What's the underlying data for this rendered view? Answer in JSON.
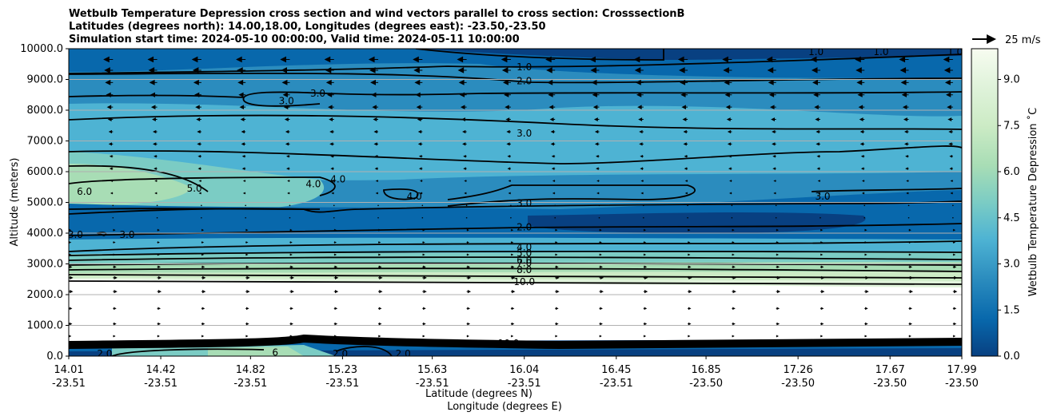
{
  "chart_data": {
    "type": "contour",
    "title_lines": [
      "Wetbulb Temperature Depression cross section and wind vectors parallel to cross section: CrosssectionB",
      "Latitudes (degrees north): 14.00,18.00, Longitudes (degrees east): -23.50,-23.50",
      "Simulation start time: 2024-05-10 00:00:00, Valid time: 2024-05-11 10:00:00"
    ],
    "ylabel": "Altitude (meters)",
    "xlabel_lat": "Latitude (degrees N)",
    "xlabel_lon": "Longitude (degrees E)",
    "ylim": [
      0,
      10000
    ],
    "yticks": [
      0,
      1000,
      2000,
      3000,
      4000,
      5000,
      6000,
      7000,
      8000,
      9000,
      10000
    ],
    "ytick_labels": [
      "0.0",
      "1000.0",
      "2000.0",
      "3000.0",
      "4000.0",
      "5000.0",
      "6000.0",
      "7000.0",
      "8000.0",
      "9000.0",
      "10000.0"
    ],
    "xlim": [
      14.01,
      17.99
    ],
    "xticks": [
      14.01,
      14.42,
      14.82,
      15.23,
      15.63,
      16.04,
      16.45,
      16.85,
      17.26,
      17.67,
      17.99
    ],
    "xtick_lat_labels": [
      "14.01",
      "14.42",
      "14.82",
      "15.23",
      "15.63",
      "16.04",
      "16.45",
      "16.85",
      "17.26",
      "17.67",
      "17.99"
    ],
    "xtick_lon_labels": [
      "-23.51",
      "-23.51",
      "-23.51",
      "-23.51",
      "-23.51",
      "-23.51",
      "-23.51",
      "-23.50",
      "-23.50",
      "-23.50",
      "-23.50"
    ],
    "grid_horizontal": true,
    "colorbar": {
      "label": "Wetbulb Temperature Depression ˚C",
      "min": 0.0,
      "max": 10.0,
      "ticks": [
        0.0,
        1.5,
        3.0,
        4.5,
        6.0,
        7.5,
        9.0
      ],
      "tick_labels": [
        "0.0",
        "1.5",
        "3.0",
        "4.5",
        "6.0",
        "7.5",
        "9.0"
      ],
      "colormap": [
        "#084081",
        "#0868ac",
        "#2b8cbe",
        "#4eb3d3",
        "#7bccc4",
        "#a8ddb5",
        "#ccebc5",
        "#e0f3db",
        "#f7fcf0"
      ]
    },
    "quiver_key": {
      "label": "25 m/s",
      "speed": 25
    },
    "contour_levels": [
      1.0,
      2.0,
      3.0,
      4.0,
      5.0,
      6.0,
      7.0,
      8.0,
      9.0,
      10.0
    ],
    "contour_labels": [
      {
        "text": "1.0",
        "lat": 16.04,
        "alt": 9400
      },
      {
        "text": "2.0",
        "lat": 16.04,
        "alt": 8950
      },
      {
        "text": "3.0",
        "lat": 14.98,
        "alt": 8300
      },
      {
        "text": "3.0",
        "lat": 15.12,
        "alt": 8550
      },
      {
        "text": "3.0",
        "lat": 16.04,
        "alt": 7250
      },
      {
        "text": "6.0",
        "lat": 14.08,
        "alt": 5350
      },
      {
        "text": "5.0",
        "lat": 14.57,
        "alt": 5450
      },
      {
        "text": "4.0",
        "lat": 15.1,
        "alt": 5600
      },
      {
        "text": "4.0",
        "lat": 15.21,
        "alt": 5750
      },
      {
        "text": "4.0",
        "lat": 15.55,
        "alt": 5200
      },
      {
        "text": "3.0",
        "lat": 16.04,
        "alt": 4980
      },
      {
        "text": "3.0",
        "lat": 17.37,
        "alt": 5200
      },
      {
        "text": "3.0",
        "lat": 14.04,
        "alt": 3950
      },
      {
        "text": "3.0",
        "lat": 14.27,
        "alt": 3950
      },
      {
        "text": "2.0",
        "lat": 16.04,
        "alt": 4200
      },
      {
        "text": "4.0",
        "lat": 16.04,
        "alt": 3550
      },
      {
        "text": "5.0",
        "lat": 16.04,
        "alt": 3350
      },
      {
        "text": "6.0",
        "lat": 16.04,
        "alt": 3120
      },
      {
        "text": "7.0",
        "lat": 16.04,
        "alt": 3020
      },
      {
        "text": "8.0",
        "lat": 16.04,
        "alt": 2800
      },
      {
        "text": "10.0",
        "lat": 16.04,
        "alt": 2420
      },
      {
        "text": "10.0",
        "lat": 15.97,
        "alt": 420
      },
      {
        "text": "2.0",
        "lat": 15.22,
        "alt": 80
      },
      {
        "text": "2.0",
        "lat": 15.5,
        "alt": 80
      },
      {
        "text": "2.0",
        "lat": 14.17,
        "alt": 80
      },
      {
        "text": "6",
        "lat": 14.93,
        "alt": 120
      },
      {
        "text": "1.0",
        "lat": 17.34,
        "alt": 9900
      },
      {
        "text": "1.0",
        "lat": 17.63,
        "alt": 9900
      },
      {
        "text": "1.0",
        "lat": 17.96,
        "alt": 9900
      }
    ],
    "wind_vectors": {
      "rows": [
        {
          "alt": 9650,
          "u": -10
        },
        {
          "alt": 9300,
          "u": -9
        },
        {
          "alt": 8900,
          "u": -8
        },
        {
          "alt": 8500,
          "u": -7
        },
        {
          "alt": 8100,
          "u": -6
        },
        {
          "alt": 7700,
          "u": -5
        },
        {
          "alt": 7300,
          "u": -4
        },
        {
          "alt": 6900,
          "u": -4
        },
        {
          "alt": 6500,
          "u": -3
        },
        {
          "alt": 6100,
          "u": -3
        },
        {
          "alt": 5700,
          "u": -2
        },
        {
          "alt": 5300,
          "u": -2
        },
        {
          "alt": 4900,
          "u": -1
        },
        {
          "alt": 4500,
          "u": 1
        },
        {
          "alt": 4100,
          "u": 2
        },
        {
          "alt": 3700,
          "u": 2
        },
        {
          "alt": 3300,
          "u": 2
        },
        {
          "alt": 2900,
          "u": 3
        },
        {
          "alt": 2550,
          "u": 4
        },
        {
          "alt": 2100,
          "u": 4
        },
        {
          "alt": 1550,
          "u": 3
        },
        {
          "alt": 1050,
          "u": 3
        },
        {
          "alt": 650,
          "u": 2
        }
      ]
    },
    "fill_bands": [
      {
        "name": "upper-dark",
        "alt_from": 9300,
        "alt_to": 10000,
        "value": 1.0
      },
      {
        "name": "upper-mid",
        "alt_from": 7000,
        "alt_to": 9300,
        "value": 2.5
      },
      {
        "name": "mid-layer",
        "alt_from": 5000,
        "alt_to": 7000,
        "value": 4.0
      },
      {
        "name": "dry-bubble",
        "alt_from": 4800,
        "alt_to": 6300,
        "value": 6.5
      },
      {
        "name": "lower-dark",
        "alt_from": 3800,
        "alt_to": 5000,
        "value": 2.0
      },
      {
        "name": "inversion",
        "alt_from": 2500,
        "alt_to": 3800,
        "value": 7.5
      },
      {
        "name": "boundary-layer",
        "alt_from": 500,
        "alt_to": 2500,
        "value": 10.5
      },
      {
        "name": "surface",
        "alt_from": 0,
        "alt_to": 500,
        "value": 1.0
      }
    ]
  }
}
